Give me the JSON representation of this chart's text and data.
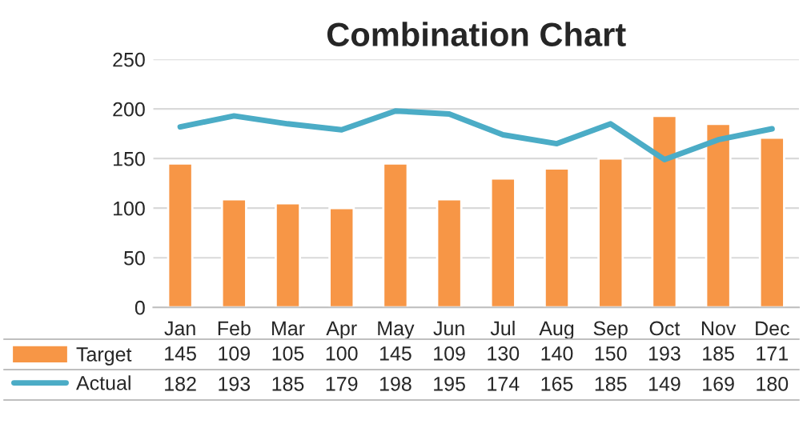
{
  "chart_data": {
    "type": "bar",
    "title": "Combination Chart",
    "categories": [
      "Jan",
      "Feb",
      "Mar",
      "Apr",
      "May",
      "Jun",
      "Jul",
      "Aug",
      "Sep",
      "Oct",
      "Nov",
      "Dec"
    ],
    "series": [
      {
        "name": "Target",
        "color": "#f79646",
        "values": [
          145,
          109,
          105,
          100,
          145,
          109,
          130,
          140,
          150,
          193,
          185,
          171
        ]
      },
      {
        "name": "Actual",
        "type": "line",
        "color": "#4bacc6",
        "values": [
          182,
          193,
          185,
          179,
          198,
          195,
          174,
          165,
          185,
          149,
          169,
          180
        ]
      }
    ],
    "ylim": [
      0,
      250
    ],
    "yticks": [
      0,
      50,
      100,
      150,
      200,
      250
    ],
    "grid": "y",
    "data_labels": true,
    "legend": "bottom",
    "marker": "none",
    "line_style": "solid"
  }
}
